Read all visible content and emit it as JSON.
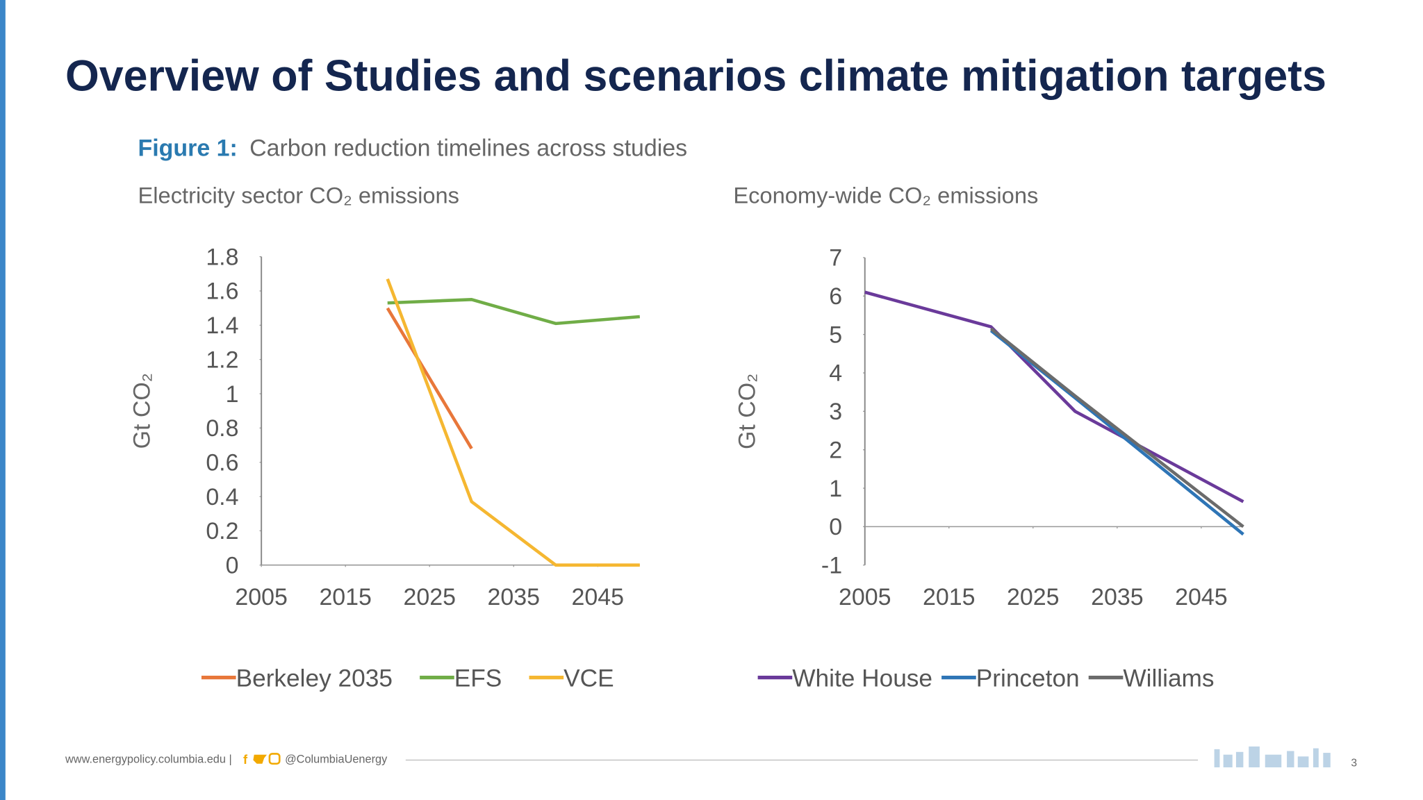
{
  "slide": {
    "title": "Overview of Studies and scenarios climate mitigation targets",
    "figure_label": "Figure 1:",
    "figure_caption": "Carbon reduction timelines across studies",
    "footer_url": "www.energypolicy.columbia.edu |",
    "footer_handle": "@ColumbiaUenergy",
    "page_number": "3"
  },
  "chart_data": [
    {
      "type": "line",
      "title": "Electricity sector CO₂ emissions",
      "y_label": "Gt CO₂",
      "x": [
        2005,
        2020,
        2030,
        2040,
        2050
      ],
      "series": [
        {
          "name": "Berkeley 2035",
          "color": "#e8773a",
          "values": [
            null,
            1.5,
            0.68,
            null,
            null
          ]
        },
        {
          "name": "EFS",
          "color": "#70ad47",
          "values": [
            null,
            1.53,
            1.55,
            1.41,
            1.45
          ]
        },
        {
          "name": "VCE",
          "color": "#f5b731",
          "values": [
            null,
            1.67,
            0.37,
            0,
            0
          ]
        }
      ],
      "xlim": [
        2005,
        2050
      ],
      "xticks": [
        2005,
        2015,
        2025,
        2035,
        2045
      ],
      "ylim": [
        0,
        1.8
      ],
      "yticks": [
        0,
        0.2,
        0.4,
        0.6,
        0.8,
        1,
        1.2,
        1.4,
        1.6,
        1.8
      ]
    },
    {
      "type": "line",
      "title": "Economy-wide CO₂ emissions",
      "y_label": "Gt CO₂",
      "x": [
        2005,
        2020,
        2030,
        2050
      ],
      "series": [
        {
          "name": "White House",
          "color": "#6a3a9a",
          "values": [
            6.1,
            5.2,
            3.0,
            0.65
          ]
        },
        {
          "name": "Princeton",
          "color": "#2e75b6",
          "values": [
            null,
            5.1,
            3.35,
            -0.2
          ]
        },
        {
          "name": "Williams",
          "color": "#6b6b6b",
          "values": [
            null,
            5.15,
            3.4,
            0
          ]
        }
      ],
      "xlim": [
        2005,
        2050
      ],
      "xticks": [
        2005,
        2015,
        2025,
        2035,
        2045
      ],
      "ylim": [
        -1,
        7
      ],
      "yticks": [
        -1,
        0,
        1,
        2,
        3,
        4,
        5,
        6,
        7
      ]
    }
  ]
}
